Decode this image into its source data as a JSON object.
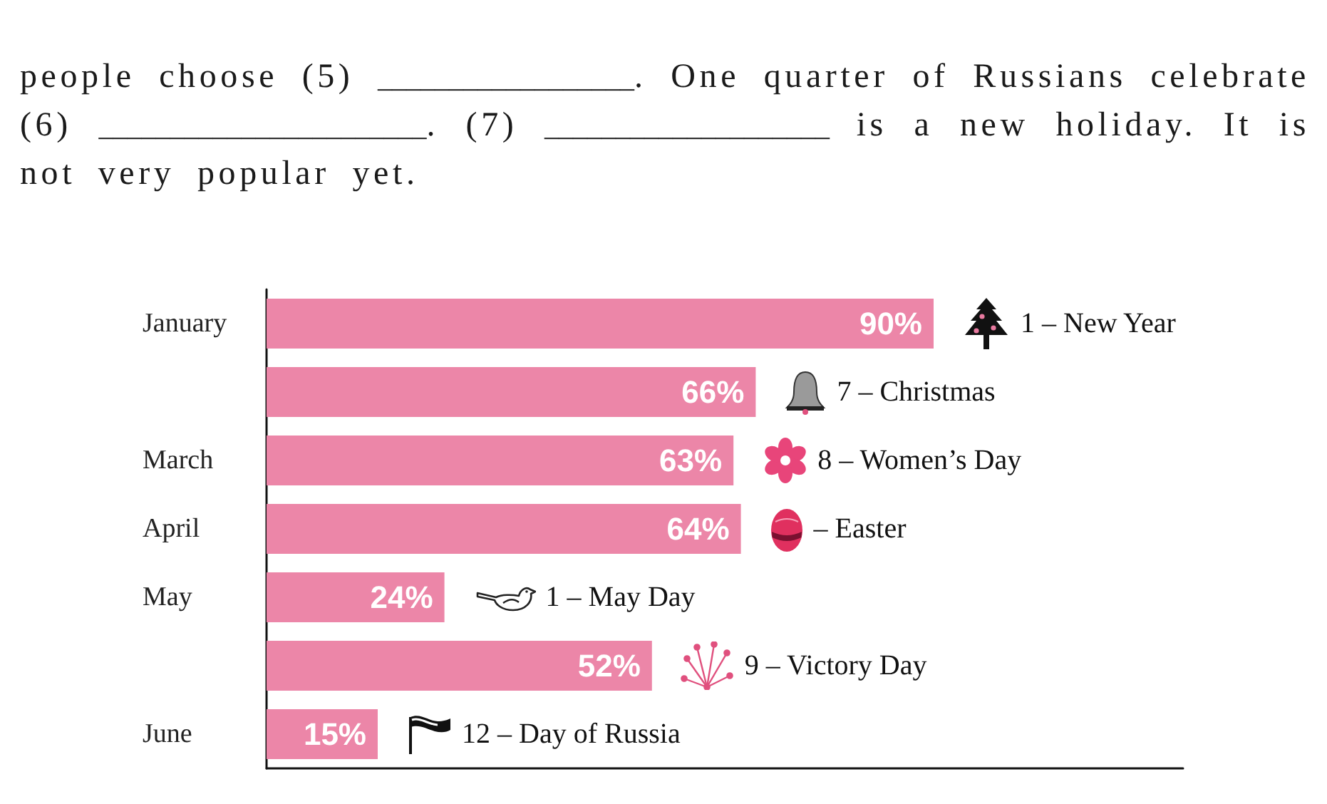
{
  "chart_data": {
    "type": "bar",
    "orientation": "horizontal",
    "categories": [
      "January",
      null,
      "March",
      "April",
      "May",
      null,
      "June"
    ],
    "values": [
      90,
      66,
      63,
      64,
      24,
      52,
      15
    ],
    "value_labels": [
      "90%",
      "66%",
      "63%",
      "64%",
      "24%",
      "52%",
      "15%"
    ],
    "color": "#ec86a8",
    "annotations": [
      "people choose (5) __________________. One quarter of Russians celebrate (6) _______________________. (7) ____________________ is a new holiday. It is not very popular yet.",
      "1 – New Year",
      "7 – Christmas",
      "8 – Women’s Day",
      "– Easter",
      "1 – May Day",
      "9 – Victory Day",
      "12 – Day of Russia"
    ]
  }
}
